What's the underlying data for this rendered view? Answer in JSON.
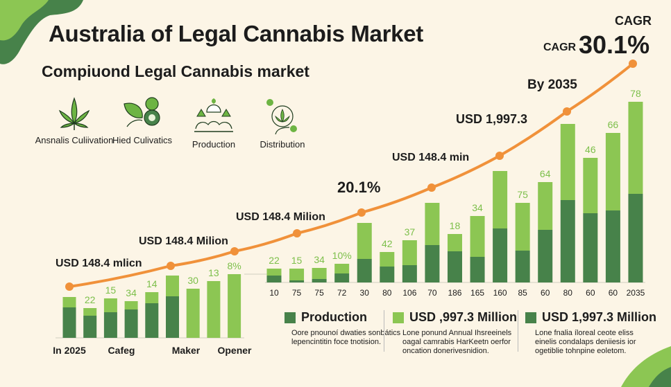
{
  "header": {
    "title": "Australia of Legal Cannabis Market",
    "subtitle": "Compiuond Legal Cannabis market"
  },
  "icons": [
    {
      "icon": "cannabis-leaf-icon",
      "label": "Ansnalis Culiivation"
    },
    {
      "icon": "leaf-coin-icon",
      "label": "Hied Culivatics"
    },
    {
      "icon": "production-icon",
      "label": "Production"
    },
    {
      "icon": "distribution-icon",
      "label": "Distribution"
    }
  ],
  "cagr": {
    "label_top": "CAGR",
    "label_left": "CAGR",
    "value": "30.1%"
  },
  "colors": {
    "dark": "#47824a",
    "light": "#8cc653",
    "line": "#f0913a",
    "label": "#7cbf4a",
    "bg": "#fcf5e6"
  },
  "chart_data": [
    {
      "type": "bar",
      "name": "left-stacked-bars",
      "stacked": true,
      "categories": [
        "In 2025",
        "",
        "Cafeg",
        "",
        "",
        "Maker",
        "",
        "Opener",
        ""
      ],
      "x_labels": [
        "In 2025",
        "Cafeg",
        "Maker",
        "Opener"
      ],
      "series": [
        {
          "name": "Production",
          "values": [
            44,
            32,
            37,
            41,
            50,
            60,
            0,
            0,
            0
          ]
        },
        {
          "name": "Other",
          "values": [
            15,
            11,
            20,
            12,
            16,
            30,
            71,
            82,
            92
          ]
        }
      ],
      "data_labels": [
        "",
        "22",
        "15",
        "34",
        "14",
        "",
        "30",
        "13",
        "8%"
      ]
    },
    {
      "type": "bar",
      "name": "right-stacked-bars",
      "stacked": true,
      "categories": [
        "10",
        "75",
        "75",
        "72",
        "30",
        "80",
        "106",
        "70",
        "186",
        "165",
        "160",
        "85",
        "60",
        "80",
        "60",
        "60",
        "2035"
      ],
      "series": [
        {
          "name": "Production",
          "values": [
            10,
            3,
            5,
            13,
            34,
            23,
            25,
            54,
            45,
            37,
            78,
            46,
            76,
            119,
            100,
            104,
            128
          ]
        },
        {
          "name": "Other",
          "values": [
            10,
            17,
            16,
            14,
            52,
            21,
            36,
            61,
            25,
            59,
            83,
            69,
            69,
            110,
            80,
            112,
            133
          ]
        }
      ],
      "data_labels": [
        "22",
        "15",
        "34",
        "10%",
        "",
        "42",
        "37",
        "",
        "18",
        "34",
        "",
        "75",
        "64",
        "",
        "46",
        "66",
        "78"
      ]
    },
    {
      "type": "line",
      "name": "growth-curve",
      "values": [
        86,
        116,
        137,
        163,
        193,
        229,
        275,
        339,
        408
      ],
      "annotations": [
        "USD 148.4 mlicn",
        "USD 148.4 Milion",
        "USD 148.4 Milion",
        "20.1%",
        "USD 148.4 min",
        "USD 1,997.3",
        "By 2035"
      ]
    }
  ],
  "legend": [
    {
      "title": "Production",
      "color": "dark",
      "text": "Oore pnounoí dwaties sonbátics lepencintitin foce tnotision."
    },
    {
      "title": "USD ,997.3 Million",
      "color": "light",
      "text": "Lone ponund Annual Ihsreeinels oagal camrabis HarKeetn oerfor oncation donerivesnidion."
    },
    {
      "title": "USD 1,997.3 Million",
      "color": "dark",
      "text": "Lone fnalia íloreal ceote eliss einelis condalaps deniiesis ior ogetiblie tohnpine eoletom."
    }
  ]
}
